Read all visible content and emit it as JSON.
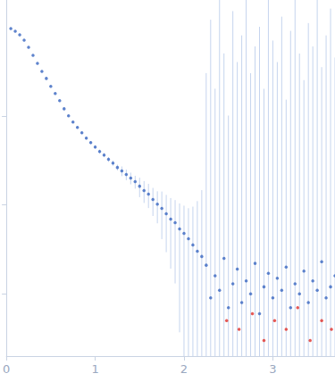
{
  "chart_data": {
    "type": "scatter",
    "log": "y",
    "tick_labels": "x",
    "grid": false,
    "xlim": [
      0,
      3.7
    ],
    "xticks": [
      0,
      1,
      2,
      3
    ],
    "ylim": [
      0.0002,
      2
    ],
    "yticks": [
      0.001,
      0.01,
      0.1
    ],
    "series": [
      {
        "color": "#3a67c0",
        "marker": "circle",
        "x": [
          0.05,
          0.1,
          0.15,
          0.2,
          0.25,
          0.3,
          0.35,
          0.4,
          0.45,
          0.5,
          0.55,
          0.6,
          0.65,
          0.7,
          0.75,
          0.8,
          0.85,
          0.9,
          0.95,
          1.0,
          1.05,
          1.1,
          1.15,
          1.2,
          1.25,
          1.3,
          1.35,
          1.4,
          1.45,
          1.5,
          1.55,
          1.6,
          1.65,
          1.7,
          1.75,
          1.8,
          1.85,
          1.9,
          1.95,
          2.0,
          2.05,
          2.1,
          2.15,
          2.2,
          2.25,
          2.3,
          2.35,
          2.4,
          2.45,
          2.5,
          2.55,
          2.6,
          2.65,
          2.7,
          2.75,
          2.8,
          2.85,
          2.9,
          2.95,
          3.0,
          3.05,
          3.1,
          3.15,
          3.2,
          3.25,
          3.3,
          3.35,
          3.4,
          3.45,
          3.5,
          3.55,
          3.6,
          3.65,
          3.7
        ],
        "values": [
          0.955,
          0.891,
          0.813,
          0.708,
          0.589,
          0.479,
          0.389,
          0.316,
          0.263,
          0.214,
          0.178,
          0.148,
          0.12,
          0.1,
          0.0851,
          0.0741,
          0.0646,
          0.0562,
          0.0501,
          0.0447,
          0.0398,
          0.0363,
          0.0324,
          0.0295,
          0.0263,
          0.024,
          0.0219,
          0.02,
          0.0182,
          0.0162,
          0.0145,
          0.0132,
          0.0115,
          0.0102,
          0.00912,
          0.00794,
          0.00692,
          0.00631,
          0.00537,
          0.00479,
          0.00417,
          0.00355,
          0.00302,
          0.00263,
          0.0021,
          0.0009,
          0.0016,
          0.0011,
          0.0025,
          0.0007,
          0.0013,
          0.0019,
          0.0008,
          0.0014,
          0.001,
          0.0022,
          0.0006,
          0.0012,
          0.0017,
          0.0009,
          0.0015,
          0.0011,
          0.002,
          0.0007,
          0.0013,
          0.001,
          0.0018,
          0.0008,
          0.0014,
          0.0011,
          0.0023,
          0.0009,
          0.0012,
          0.0016
        ],
        "errors": [
          0.01,
          0.009,
          0.008,
          0.007,
          0.006,
          0.005,
          0.004,
          0.004,
          0.003,
          0.003,
          0.003,
          0.003,
          0.003,
          0.002,
          0.002,
          0.002,
          0.002,
          0.002,
          0.002,
          0.002,
          0.002,
          0.002,
          0.002,
          0.002,
          0.002,
          0.003,
          0.003,
          0.003,
          0.003,
          0.004,
          0.004,
          0.004,
          0.004,
          0.004,
          0.005,
          0.005,
          0.005,
          0.005,
          0.005,
          0.005,
          0.005,
          0.006,
          0.008,
          0.012,
          0.3,
          1.2,
          0.2,
          2,
          0.5,
          0.1,
          1.5,
          0.4,
          0.8,
          2,
          0.3,
          0.6,
          1,
          0.2,
          2,
          0.7,
          0.4,
          1.3,
          0.15,
          0.9,
          2,
          0.5,
          0.25,
          1.1,
          0.6,
          2,
          0.35,
          0.8,
          1.6,
          0.45
        ]
      },
      {
        "color": "#e0302a",
        "marker": "circle",
        "x": [
          2.48,
          2.62,
          2.77,
          2.9,
          3.02,
          3.15,
          3.28,
          3.42,
          3.55,
          3.66
        ],
        "values": [
          0.0005,
          0.0004,
          0.0006,
          0.0003,
          0.0005,
          0.0004,
          0.0007,
          0.0003,
          0.0005,
          0.0004
        ]
      }
    ]
  }
}
